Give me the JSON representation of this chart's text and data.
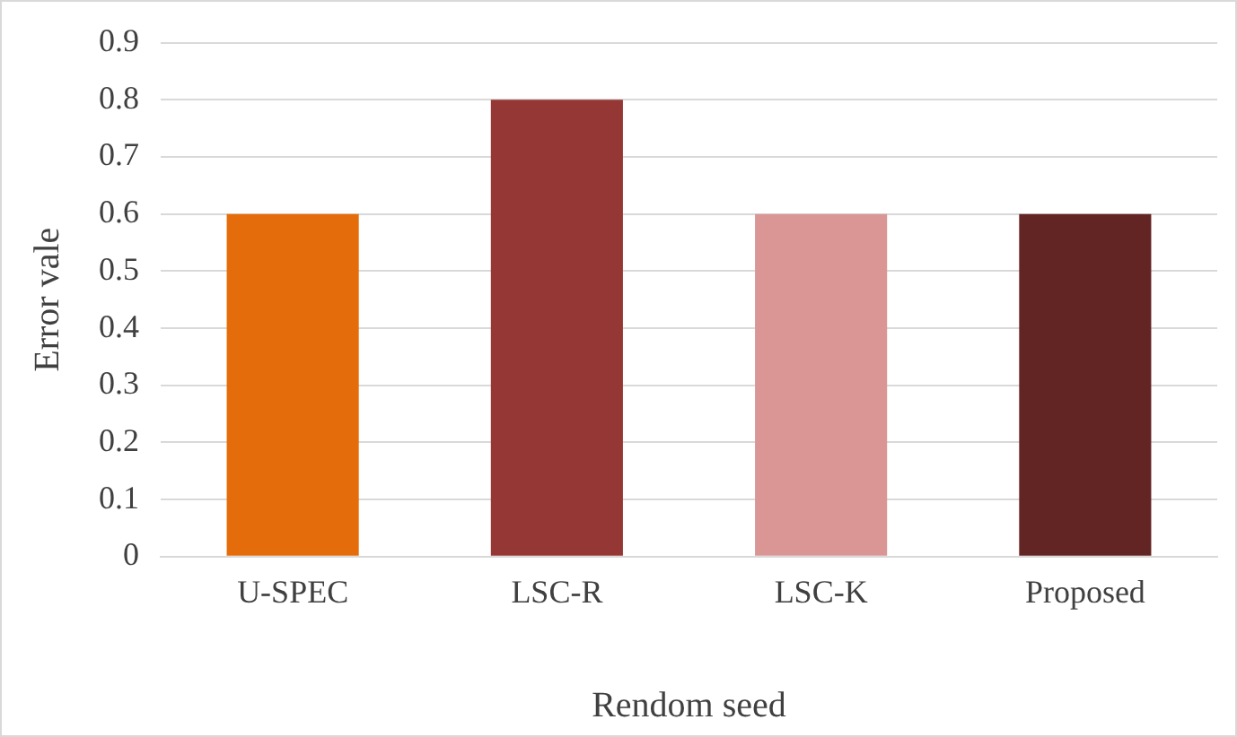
{
  "chart_data": {
    "type": "bar",
    "xlabel": "Rendom seed",
    "ylabel": "Error vale",
    "categories": [
      "U-SPEC",
      "LSC-R",
      "LSC-K",
      "Proposed"
    ],
    "values": [
      0.6,
      0.8,
      0.6,
      0.6
    ],
    "colors": [
      "#e46c0a",
      "#953735",
      "#d99694",
      "#632523"
    ],
    "ylim": [
      0,
      0.9
    ],
    "yticks": [
      0,
      0.1,
      0.2,
      0.3,
      0.4,
      0.5,
      0.6,
      0.7,
      0.8,
      0.9
    ],
    "grid": "y",
    "legend": false
  }
}
